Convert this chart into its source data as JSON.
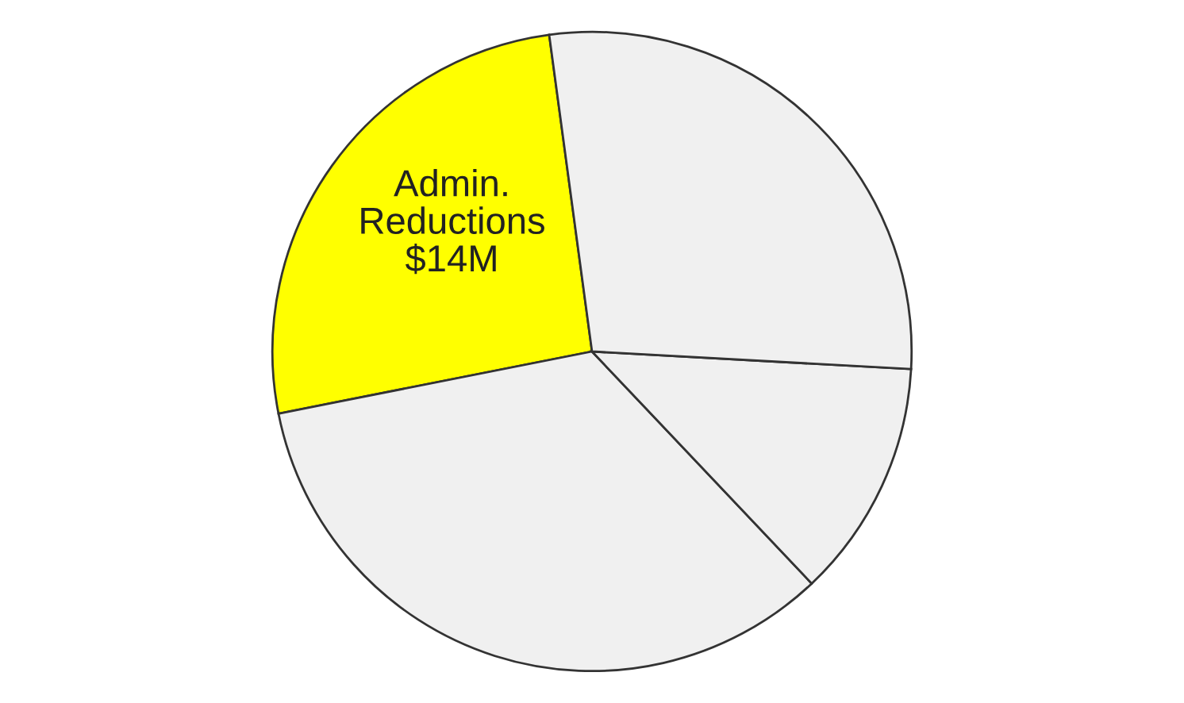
{
  "chart_data": {
    "type": "pie",
    "categories": [
      "Admin.\nReductions",
      null,
      null,
      null
    ],
    "values": [
      14,
      18.3,
      6.5,
      15.1
    ],
    "value_labels": [
      "$14M",
      null,
      null,
      null
    ],
    "colors": [
      "#ffff00",
      "#f0f0f0",
      "#f0f0f0",
      "#f0f0f0"
    ]
  }
}
